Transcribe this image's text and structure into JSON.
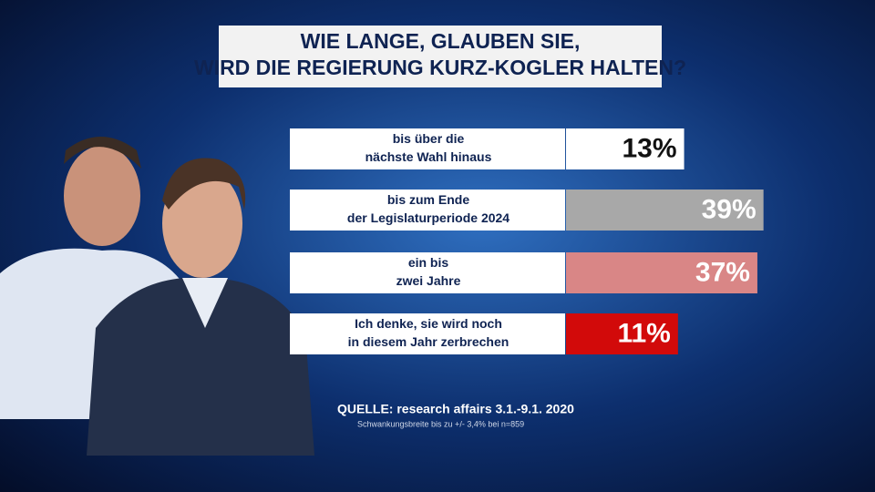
{
  "chart_data": {
    "type": "hbar",
    "title": [
      "WIE LANGE, GLAUBEN SIE,",
      "WIRD DIE REGIERUNG KURZ-KOGLER HALTEN?"
    ],
    "categories": [
      [
        "bis über die",
        "nächste Wahl hinaus"
      ],
      [
        "bis zum Ende",
        "der Legislaturperiode 2024"
      ],
      [
        "ein bis",
        "zwei Jahre"
      ],
      [
        "Ich denke, sie wird noch",
        "in diesem Jahr zerbrechen"
      ]
    ],
    "values": [
      13,
      39,
      37,
      11
    ],
    "value_labels": [
      "13%",
      "39%",
      "37%",
      "11%"
    ],
    "colors": [
      "#ffffff",
      "#a8a8a8",
      "#d98686",
      "#d20a0a"
    ],
    "label_colors": [
      "#111111",
      "#ffffff",
      "#ffffff",
      "#ffffff"
    ],
    "source": "QUELLE: research affairs 3.1.-9.1. 2020",
    "note": "Schwankungsbreite bis zu +/- 3,4% bei n=859"
  }
}
